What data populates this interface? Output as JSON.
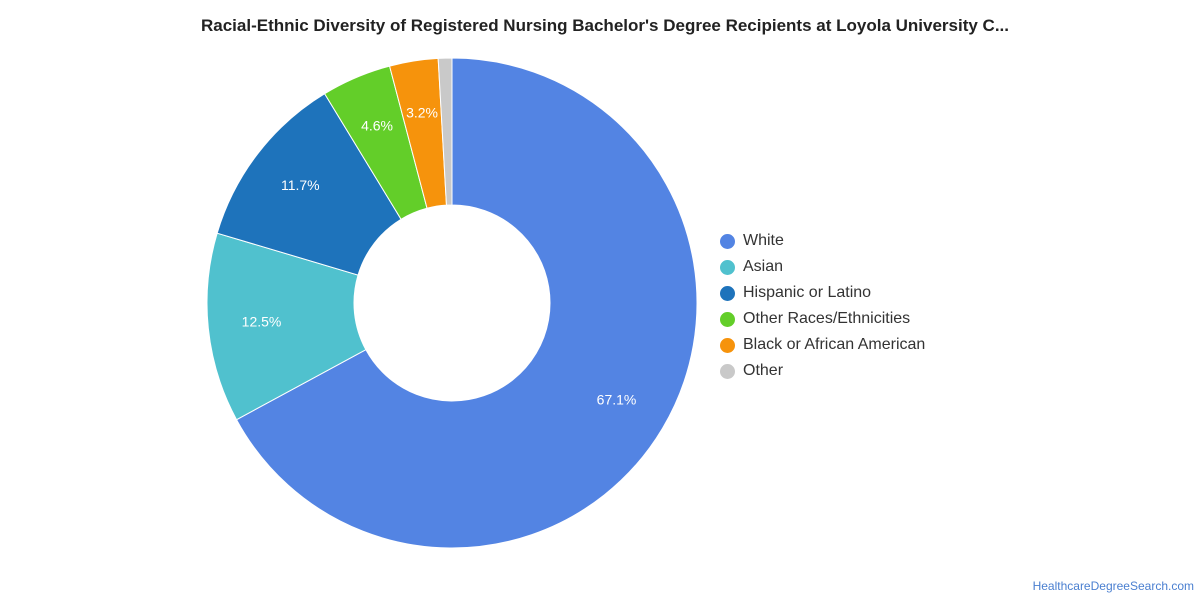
{
  "chart_data": {
    "type": "pie",
    "title": "Racial-Ethnic Diversity of Registered Nursing Bachelor's Degree Recipients at Loyola University C...",
    "donut": true,
    "slices": [
      {
        "name": "White",
        "value": 67.1,
        "label": "67.1%",
        "color": "#5384e3"
      },
      {
        "name": "Asian",
        "value": 12.5,
        "label": "12.5%",
        "color": "#50c1ce"
      },
      {
        "name": "Hispanic or Latino",
        "value": 11.7,
        "label": "11.7%",
        "color": "#1e73bb"
      },
      {
        "name": "Other Races/Ethnicities",
        "value": 4.6,
        "label": "4.6%",
        "color": "#63ce29"
      },
      {
        "name": "Black or African American",
        "value": 3.2,
        "label": "3.2%",
        "color": "#f6930c"
      },
      {
        "name": "Other",
        "value": 0.9,
        "label": "",
        "color": "#c9c9c9"
      }
    ],
    "legend_position": "right"
  },
  "footer": {
    "source": "HealthcareDegreeSearch.com"
  }
}
